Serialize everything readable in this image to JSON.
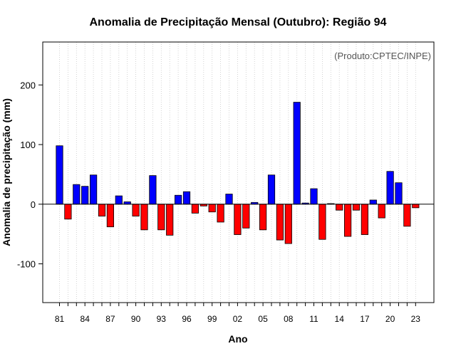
{
  "chart_data": {
    "type": "bar",
    "title": "Anomalia de Precipitação Mensal (Outubro): Região 94",
    "xlabel": "Ano",
    "ylabel": "Anomalia de precipitação (mm)",
    "annotation": "(Produto:CPTEC/INPE)",
    "ylim": [
      -165,
      272
    ],
    "yticks": [
      -100,
      0,
      100,
      200
    ],
    "ytick_labels": [
      "-100",
      "0",
      "100",
      "200"
    ],
    "grid": "vertical dotted lines at each year",
    "positive_color": "#0000ff",
    "negative_color": "#ff0000",
    "categories": [
      "81",
      "82",
      "83",
      "84",
      "85",
      "86",
      "87",
      "88",
      "89",
      "90",
      "91",
      "92",
      "93",
      "94",
      "95",
      "96",
      "97",
      "98",
      "99",
      "00",
      "01",
      "02",
      "03",
      "04",
      "05",
      "06",
      "07",
      "08",
      "09",
      "10",
      "11",
      "12",
      "13",
      "14",
      "15",
      "16",
      "17",
      "18",
      "19",
      "20",
      "21",
      "22",
      "23"
    ],
    "xtick_labels": [
      "81",
      "84",
      "87",
      "90",
      "93",
      "96",
      "99",
      "02",
      "05",
      "08",
      "11",
      "14",
      "17",
      "20",
      "23"
    ],
    "values": [
      98,
      -25,
      33,
      30,
      49,
      -20,
      -38,
      14,
      4,
      -20,
      -43,
      48,
      -43,
      -52,
      15,
      21,
      -15,
      -3,
      -13,
      -30,
      17,
      -51,
      -40,
      3,
      -43,
      49,
      -60,
      -66,
      171,
      2,
      26,
      -59,
      1,
      -10,
      -54,
      -10,
      -51,
      7,
      -23,
      55,
      36,
      -37,
      -6
    ]
  }
}
